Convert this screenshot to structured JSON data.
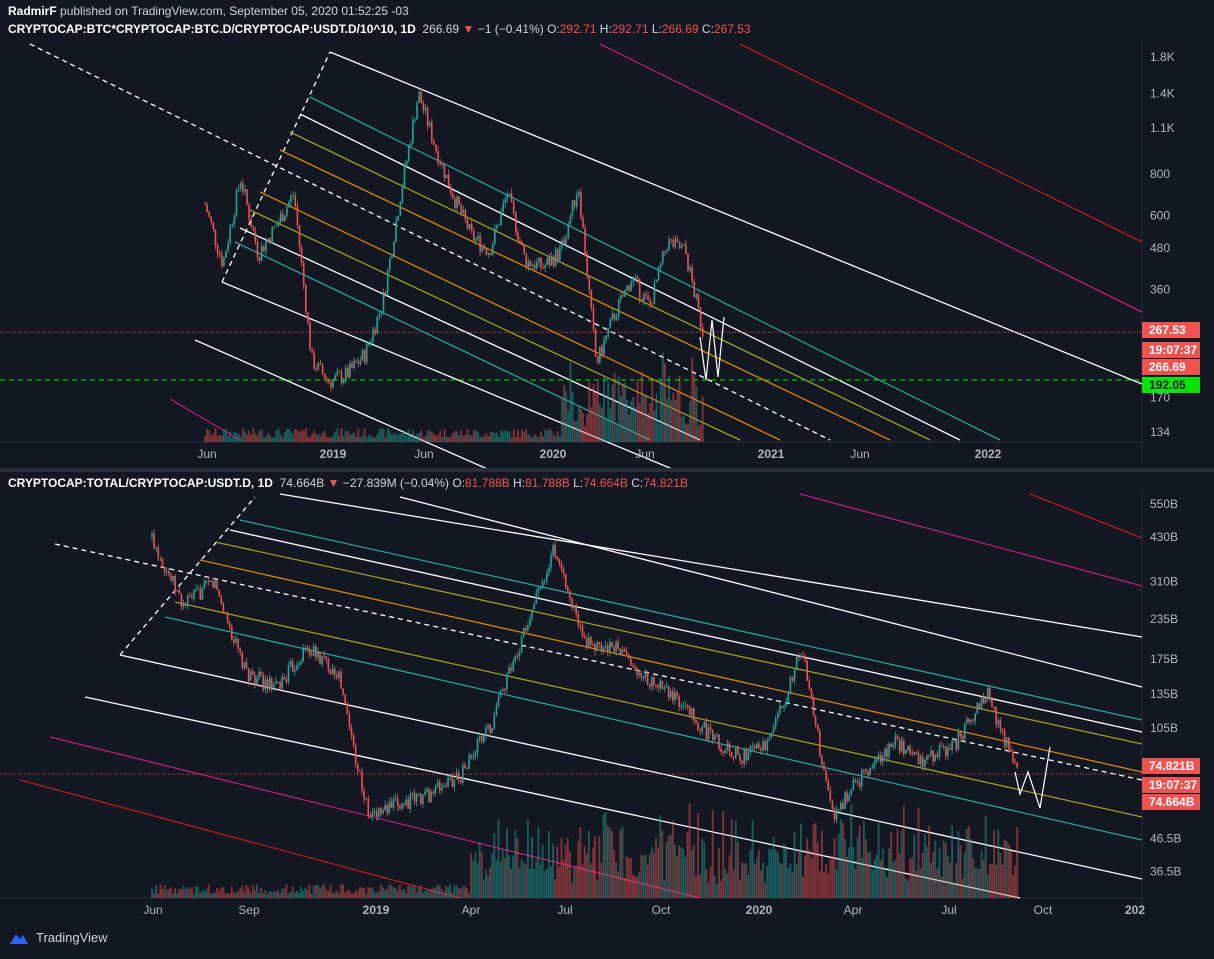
{
  "header": {
    "author": "RadmirF",
    "published_text": " published on TradingView.com, September 05, 2020 01:52:25 -03"
  },
  "pane1": {
    "symbol": "CRYPTOCAP:BTC*CRYPTOCAP:BTC.D/CRYPTOCAP:USDT.D/10^10, 1D",
    "last": "266.69",
    "arrow": "▼",
    "change": "−1 (−0.41%)",
    "o_label": "O:",
    "o": "292.71",
    "h_label": "H:",
    "h": "292.71",
    "l_label": "L:",
    "l": "266.69",
    "c_label": "C:",
    "c": "267.53",
    "badges": {
      "close": "267.53",
      "timer": "19:07:37",
      "last": "266.69",
      "hline": "192.05"
    },
    "colors": {
      "close": "#ef5350",
      "hline": "#00e600",
      "up": "#26a69a",
      "down": "#ef5350"
    }
  },
  "pane2": {
    "symbol": "CRYPTOCAP:TOTAL/CRYPTOCAP:USDT.D, 1D",
    "last": "74.664B",
    "arrow": "▼",
    "change": "−27.839M (−0.04%)",
    "o_label": "O:",
    "o": "81.788B",
    "h_label": "H:",
    "h": "81.788B",
    "l_label": "L:",
    "l": "74.664B",
    "c_label": "C:",
    "c": "74.821B",
    "badges": {
      "close": "74.821B",
      "timer": "19:07:37",
      "last": "74.664B"
    }
  },
  "chart_data": [
    {
      "type": "line",
      "title": "CRYPTOCAP:BTC*CRYPTOCAP:BTC.D/CRYPTOCAP:USDT.D/10^10, 1D",
      "y_scale": "log",
      "y_ticks": [
        "1.8K",
        "1.4K",
        "1.1K",
        "800",
        "600",
        "480",
        "360",
        "270",
        "170",
        "134"
      ],
      "x_ticks": [
        "Jun",
        "2019",
        "Jun",
        "2020",
        "Jun",
        "2021",
        "Jun",
        "2022"
      ],
      "series": [
        {
          "x": [
            "2018-05",
            "2018-06",
            "2018-07",
            "2018-08",
            "2018-09",
            "2018-10",
            "2018-11",
            "2018-12",
            "2019-01",
            "2019-02",
            "2019-03",
            "2019-04",
            "2019-05",
            "2019-06",
            "2019-07",
            "2019-08",
            "2019-09",
            "2019-10",
            "2019-11",
            "2019-12",
            "2020-01",
            "2020-02",
            "2020-03",
            "2020-04",
            "2020-05",
            "2020-06",
            "2020-07",
            "2020-08",
            "2020-09"
          ],
          "values": [
            650,
            430,
            780,
            460,
            560,
            700,
            220,
            190,
            200,
            230,
            330,
            700,
            1400,
            950,
            680,
            520,
            470,
            700,
            440,
            420,
            470,
            740,
            215,
            300,
            390,
            320,
            500,
            470,
            267
          ]
        }
      ],
      "hlines": [
        267.53,
        192.05
      ],
      "ylim": [
        125,
        2000
      ]
    },
    {
      "type": "line",
      "title": "CRYPTOCAP:TOTAL/CRYPTOCAP:USDT.D, 1D",
      "y_scale": "log",
      "y_ticks": [
        "550B",
        "430B",
        "310B",
        "235B",
        "175B",
        "135B",
        "105B",
        "46.5B",
        "36.5B"
      ],
      "x_ticks": [
        "Jun",
        "Sep",
        "2019",
        "Apr",
        "Jul",
        "Oct",
        "2020",
        "Apr",
        "Jul",
        "Oct",
        "202"
      ],
      "series": [
        {
          "x": [
            "2018-05",
            "2018-06",
            "2018-07",
            "2018-08",
            "2018-09",
            "2018-10",
            "2018-11",
            "2018-12",
            "2019-01",
            "2019-02",
            "2019-03",
            "2019-04",
            "2019-05",
            "2019-06",
            "2019-07",
            "2019-08",
            "2019-09",
            "2019-10",
            "2019-11",
            "2019-12",
            "2020-01",
            "2020-02",
            "2020-03",
            "2020-04",
            "2020-05",
            "2020-06",
            "2020-07",
            "2020-08",
            "2020-09"
          ],
          "values": [
            430,
            260,
            310,
            160,
            140,
            190,
            160,
            55,
            60,
            65,
            75,
            110,
            210,
            390,
            200,
            190,
            150,
            130,
            100,
            85,
            95,
            190,
            55,
            75,
            95,
            82,
            95,
            135,
            74.8
          ]
        }
      ],
      "hlines": [
        74.821
      ],
      "ylim": [
        30,
        600
      ]
    }
  ]
}
